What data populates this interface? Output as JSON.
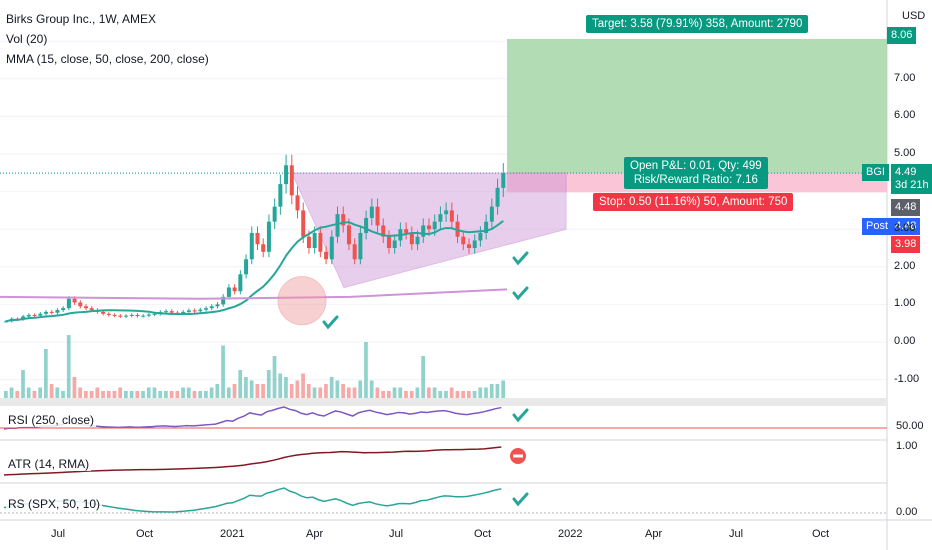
{
  "header": {
    "title": "Birks Group Inc., 1W, AMEX",
    "volume_label": "Vol (20)",
    "mma_label": "MMA (15, close, 50, close, 200, close)"
  },
  "axis": {
    "currency": "USD",
    "price_ticks": [
      "7.00",
      "6.00",
      "5.00",
      "3.00",
      "2.00",
      "1.00",
      "0.00",
      "-1.00"
    ],
    "time_ticks": [
      "Jul",
      "Oct",
      "2021",
      "Apr",
      "Jul",
      "Oct",
      "2022",
      "Apr",
      "Jul",
      "Oct"
    ]
  },
  "price_tags": {
    "target_price": "8.06",
    "symbol": "BGI",
    "last_price": "4.49",
    "countdown": "3d 21h",
    "mma_value": "4.48",
    "post_label": "Post",
    "post_price": "4.48",
    "stop_price": "3.98"
  },
  "position": {
    "target_text": "Target: 3.58 (79.91%) 358, Amount: 2790",
    "pnl_text": "Open P&L: 0.01, Qty: 499",
    "rr_text": "Risk/Reward Ratio: 7.16",
    "stop_text": "Stop: 0.50 (11.16%) 50, Amount: 750"
  },
  "panes": {
    "rsi_label": "RSI (250, close)",
    "rsi_tick": "50.00",
    "atr_label": "ATR (14, RMA)",
    "atr_tick": "1.00",
    "rs_label": "RS (SPX, 50, 10)",
    "rs_tick": "0.00"
  },
  "colors": {
    "up": "#26a69a",
    "down": "#ef5350",
    "target_zone": "#a5d6a7",
    "stop_zone": "#f8bbd0",
    "triangle": "#ce93d8",
    "rsi": "#7e57c2",
    "atr": "#801922",
    "rs": "#26a69a",
    "check": "#26a69a",
    "cross": "#ef5350"
  },
  "chart_data": {
    "type": "candlestick",
    "symbol": "BGI",
    "interval": "1W",
    "closes": [
      0.55,
      0.62,
      0.6,
      0.68,
      0.72,
      0.7,
      0.75,
      0.8,
      0.78,
      0.85,
      0.9,
      1.15,
      1.05,
      0.95,
      0.9,
      0.85,
      0.8,
      0.75,
      0.72,
      0.7,
      0.68,
      0.7,
      0.72,
      0.69,
      0.7,
      0.73,
      0.75,
      0.8,
      0.82,
      0.78,
      0.76,
      0.8,
      0.84,
      0.82,
      0.86,
      0.9,
      0.95,
      1.0,
      1.2,
      1.45,
      1.35,
      1.8,
      2.2,
      2.9,
      2.6,
      2.4,
      3.2,
      3.6,
      4.2,
      4.7,
      3.9,
      3.5,
      2.8,
      2.5,
      2.9,
      2.4,
      2.2,
      2.8,
      3.4,
      3.1,
      2.6,
      2.2,
      2.9,
      3.3,
      3.6,
      3.1,
      2.8,
      2.5,
      2.7,
      3.0,
      2.9,
      2.6,
      2.8,
      3.1,
      3.0,
      3.2,
      3.4,
      3.5,
      3.2,
      2.8,
      2.6,
      2.5,
      2.7,
      2.9,
      3.2,
      3.6,
      4.1,
      4.49
    ],
    "last": 4.49,
    "volume_scale_note": ""
  }
}
